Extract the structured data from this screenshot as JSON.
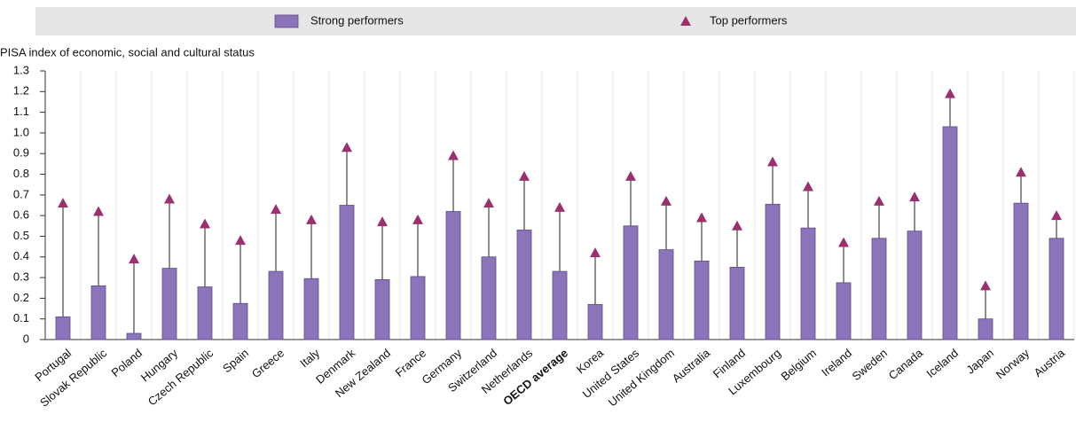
{
  "chart_data": {
    "type": "bar",
    "y_label": "PISA index of economic, social and cultural status",
    "categories": [
      "Portugal",
      "Slovak Republic",
      "Poland",
      "Hungary",
      "Czech Republic",
      "Spain",
      "Greece",
      "Italy",
      "Denmark",
      "New Zealand",
      "France",
      "Germany",
      "Switzerland",
      "Netherlands",
      "OECD average",
      "Korea",
      "United States",
      "United Kingdom",
      "Australia",
      "Finland",
      "Luxembourg",
      "Belgium",
      "Ireland",
      "Sweden",
      "Canada",
      "Iceland",
      "Japan",
      "Norway",
      "Austria"
    ],
    "bold_categories": [
      14
    ],
    "series": [
      {
        "name": "Strong performers",
        "style": "bar",
        "color": "#8b74b9",
        "values": [
          0.11,
          0.26,
          0.03,
          0.345,
          0.255,
          0.175,
          0.33,
          0.295,
          0.65,
          0.29,
          0.305,
          0.62,
          0.4,
          0.53,
          0.33,
          0.17,
          0.55,
          0.435,
          0.38,
          0.35,
          0.655,
          0.54,
          0.275,
          0.49,
          0.525,
          1.03,
          0.1,
          0.66,
          0.49
        ]
      },
      {
        "name": "Top performers",
        "style": "triangle",
        "color": "#9c2f6e",
        "values": [
          0.66,
          0.62,
          0.39,
          0.68,
          0.56,
          0.48,
          0.63,
          0.58,
          0.93,
          0.57,
          0.58,
          0.89,
          0.66,
          0.79,
          0.64,
          0.42,
          0.79,
          0.67,
          0.59,
          0.55,
          0.86,
          0.74,
          0.47,
          0.67,
          0.69,
          1.19,
          0.26,
          0.81,
          0.6
        ]
      }
    ],
    "ylim": [
      0,
      1.3
    ],
    "yticks": [
      0,
      0.1,
      0.2,
      0.3,
      0.4,
      0.5,
      0.6,
      0.7,
      0.8,
      0.9,
      {
        "value": 1,
        "label": "1.0"
      },
      1.1,
      1.2,
      1.3
    ]
  }
}
